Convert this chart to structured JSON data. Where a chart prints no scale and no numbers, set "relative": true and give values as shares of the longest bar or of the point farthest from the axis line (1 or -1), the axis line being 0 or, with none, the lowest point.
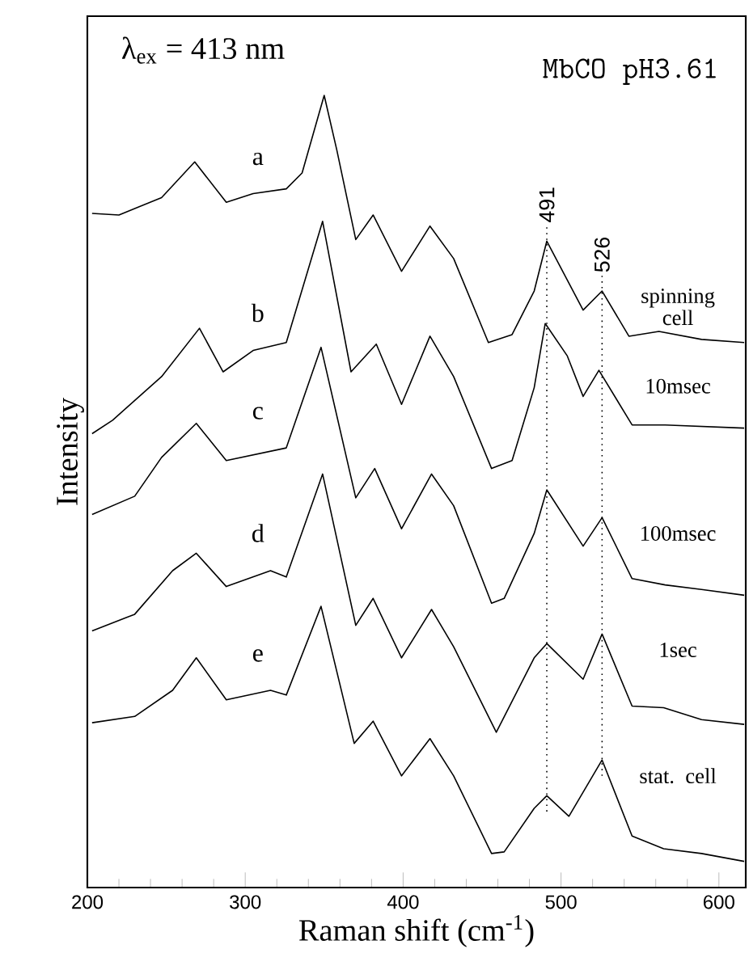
{
  "chart_data": {
    "type": "line",
    "relative": true,
    "xlabel": "Raman shift (cm$^{-1}$)",
    "ylabel": "Intensity",
    "xlim": [
      200,
      617
    ],
    "xticks": [
      200,
      300,
      400,
      500,
      600
    ],
    "series": [
      {
        "name": "a",
        "color": "#000000",
        "x": [
          203,
          220,
          247,
          268,
          288,
          305,
          326,
          336,
          350,
          358,
          370,
          381,
          399,
          417,
          432,
          454,
          469,
          483,
          491,
          514,
          526,
          543,
          562,
          589,
          616
        ],
        "values": [
          0.851,
          0.849,
          0.871,
          0.916,
          0.865,
          0.876,
          0.882,
          0.902,
          1.0,
          0.931,
          0.818,
          0.849,
          0.778,
          0.835,
          0.794,
          0.688,
          0.698,
          0.753,
          0.816,
          0.729,
          0.753,
          0.696,
          0.702,
          0.692,
          0.688
        ]
      },
      {
        "name": "b",
        "color": "#000000",
        "x": [
          203,
          216,
          247,
          271,
          286,
          305,
          326,
          349,
          367,
          383,
          399,
          417,
          432,
          456,
          469,
          483,
          490,
          504,
          514,
          524,
          545,
          566,
          616
        ],
        "values": [
          0.573,
          0.59,
          0.645,
          0.706,
          0.651,
          0.678,
          0.688,
          0.841,
          0.651,
          0.686,
          0.61,
          0.696,
          0.645,
          0.529,
          0.539,
          0.631,
          0.712,
          0.671,
          0.62,
          0.653,
          0.584,
          0.584,
          0.58
        ]
      },
      {
        "name": "c",
        "color": "#000000",
        "x": [
          203,
          230,
          247,
          269,
          288,
          326,
          348,
          370,
          382,
          399,
          418,
          432,
          456,
          464,
          483,
          491,
          514,
          526,
          545,
          566,
          590,
          616
        ],
        "values": [
          0.471,
          0.494,
          0.543,
          0.586,
          0.539,
          0.555,
          0.682,
          0.492,
          0.529,
          0.453,
          0.522,
          0.482,
          0.359,
          0.365,
          0.447,
          0.502,
          0.431,
          0.467,
          0.39,
          0.382,
          0.376,
          0.369
        ]
      },
      {
        "name": "d",
        "color": "#000000",
        "x": [
          203,
          230,
          254,
          269,
          288,
          316,
          326,
          349,
          370,
          381,
          399,
          418,
          432,
          459,
          483,
          491,
          514,
          526,
          545,
          565,
          589,
          616
        ],
        "values": [
          0.324,
          0.345,
          0.4,
          0.422,
          0.38,
          0.4,
          0.392,
          0.522,
          0.331,
          0.365,
          0.29,
          0.351,
          0.304,
          0.196,
          0.29,
          0.308,
          0.263,
          0.32,
          0.229,
          0.227,
          0.212,
          0.206
        ]
      },
      {
        "name": "e",
        "color": "#000000",
        "x": [
          203,
          230,
          254,
          269,
          288,
          316,
          326,
          348,
          369,
          381,
          399,
          417,
          432,
          456,
          464,
          483,
          491,
          505,
          526,
          545,
          565,
          589,
          616
        ],
        "values": [
          0.208,
          0.216,
          0.249,
          0.29,
          0.237,
          0.249,
          0.243,
          0.355,
          0.182,
          0.21,
          0.141,
          0.188,
          0.141,
          0.043,
          0.045,
          0.1,
          0.116,
          0.09,
          0.161,
          0.065,
          0.049,
          0.043,
          0.033
        ]
      }
    ],
    "ref_lines": [
      {
        "axis": "x",
        "value": 491,
        "label": "491",
        "line_style": "dotted"
      },
      {
        "axis": "x",
        "value": 526,
        "label": "526",
        "line_style": "dotted"
      }
    ],
    "annotations": [
      "λ$_{ex}$ = 413 nm",
      "MbCO pH3.61",
      "spinning cell",
      "10msec",
      "100msec",
      "1sec",
      "stat. cell"
    ]
  }
}
